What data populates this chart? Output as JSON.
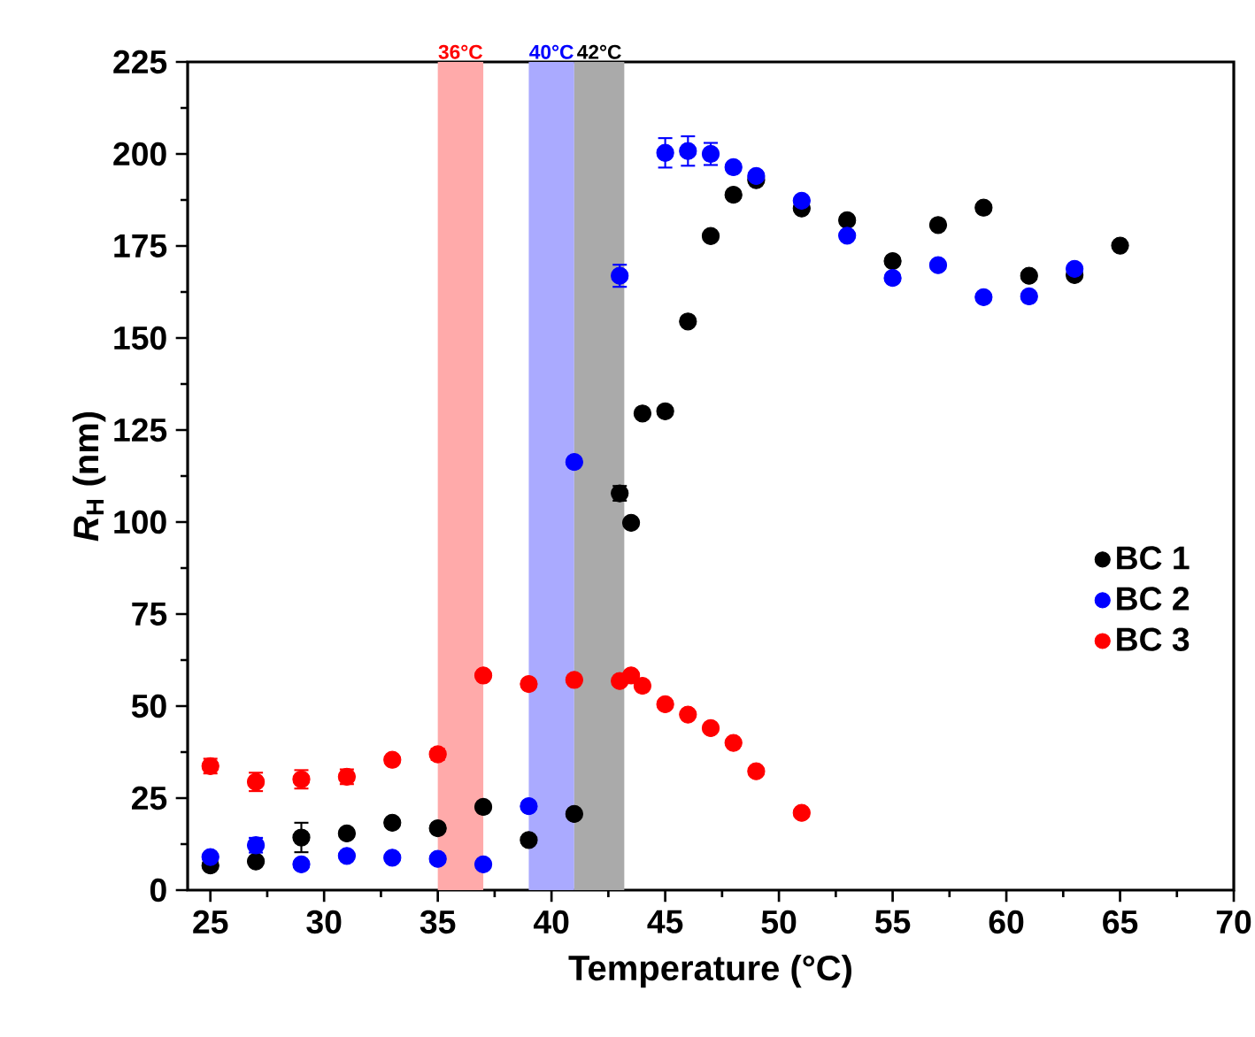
{
  "chart_data": {
    "type": "scatter",
    "xlabel": "Temperature (°C)",
    "ylabel": "*R*$_{H}$ (nm)",
    "xlim": [
      24,
      70
    ],
    "xticks": [
      25,
      30,
      35,
      40,
      45,
      50,
      55,
      60,
      65,
      70
    ],
    "ylim": [
      0,
      225
    ],
    "yticks": [
      0,
      25,
      50,
      75,
      100,
      125,
      150,
      175,
      200,
      225
    ],
    "marker": "circle",
    "legend": "right",
    "series": [
      {
        "name": "BC 1",
        "color": "#000000",
        "x": [
          25,
          27,
          29,
          31,
          33,
          35,
          37,
          39,
          41,
          43,
          43.5,
          44,
          45,
          46,
          47,
          48,
          49,
          51,
          53,
          55,
          57,
          59,
          61,
          63,
          65
        ],
        "values": [
          6.7,
          7.8,
          14.3,
          15.4,
          18.3,
          16.8,
          22.6,
          13.6,
          20.7,
          107.8,
          99.8,
          129.5,
          130.1,
          154.5,
          177.7,
          188.9,
          192.9,
          185.2,
          182.0,
          170.9,
          180.7,
          185.4,
          166.9,
          167.1,
          175.1
        ],
        "errors": [
          null,
          null,
          4,
          null,
          null,
          null,
          null,
          null,
          null,
          2,
          null,
          null,
          null,
          null,
          null,
          null,
          null,
          null,
          null,
          null,
          null,
          null,
          null,
          null,
          null
        ]
      },
      {
        "name": "BC 2",
        "color": "#0000ff",
        "x": [
          25,
          27,
          29,
          31,
          33,
          35,
          37,
          39,
          41,
          43,
          45,
          46,
          47,
          48,
          49,
          51,
          53,
          55,
          57,
          59,
          61,
          63
        ],
        "values": [
          9.0,
          12.2,
          7.0,
          9.3,
          8.8,
          8.5,
          7.0,
          22.8,
          116.3,
          166.9,
          200.3,
          200.8,
          200.0,
          196.4,
          194.0,
          187.3,
          177.8,
          166.3,
          169.8,
          161.1,
          161.3,
          168.8
        ],
        "errors": [
          null,
          2,
          null,
          null,
          null,
          null,
          null,
          null,
          null,
          3,
          4,
          4,
          3,
          null,
          null,
          null,
          null,
          null,
          null,
          null,
          null,
          null
        ]
      },
      {
        "name": "BC 3",
        "color": "#ff0000",
        "x": [
          25,
          27,
          29,
          31,
          33,
          35,
          37,
          39,
          41,
          43,
          43.5,
          44,
          45,
          46,
          47,
          48,
          49,
          51
        ],
        "values": [
          33.7,
          29.4,
          30.1,
          30.8,
          35.4,
          36.9,
          58.3,
          56.0,
          57.1,
          56.8,
          58.3,
          55.5,
          50.5,
          47.7,
          44.0,
          40.0,
          32.3,
          21.0
        ],
        "errors": [
          2,
          2.5,
          2.5,
          2,
          1,
          1.5,
          null,
          null,
          null,
          null,
          null,
          null,
          null,
          null,
          null,
          null,
          null,
          null
        ]
      }
    ],
    "bands": [
      {
        "axis": "x",
        "from": 35,
        "to": 37,
        "label": "36°C",
        "color": "#ffaaaa"
      },
      {
        "axis": "x",
        "from": 39,
        "to": 41,
        "label": "40°C",
        "color": "#aaaaff"
      },
      {
        "axis": "x",
        "from": 41,
        "to": 43.2,
        "label": "42°C",
        "color": "#aaaaaa"
      }
    ]
  }
}
